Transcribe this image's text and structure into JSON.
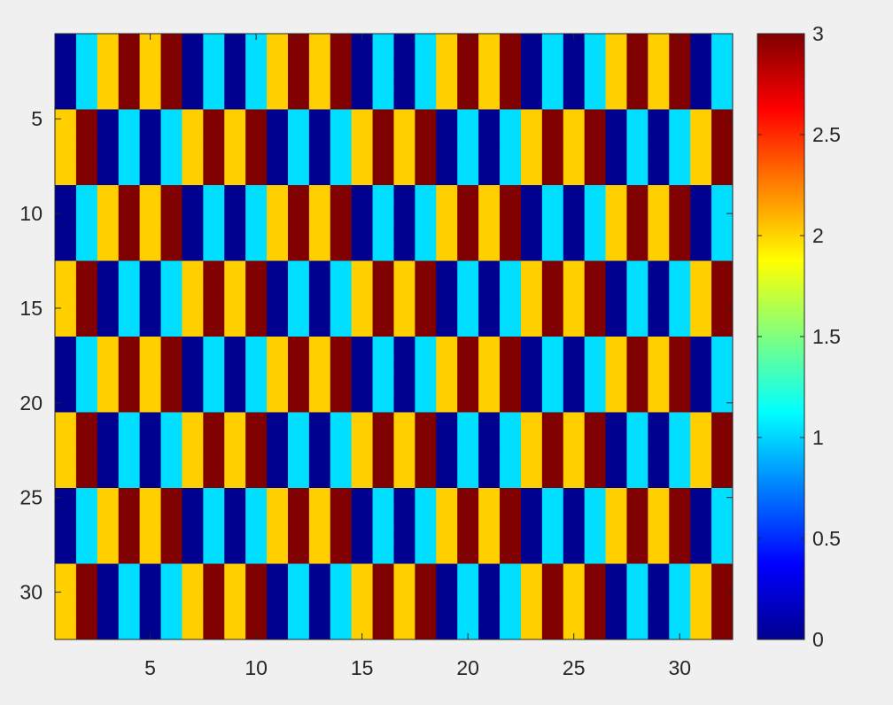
{
  "chart_data": {
    "type": "heatmap",
    "title": "",
    "xlabel": "",
    "ylabel": "",
    "x_range": [
      1,
      32
    ],
    "y_range": [
      1,
      32
    ],
    "y_direction": "reverse",
    "x_ticks": [
      "5",
      "10",
      "15",
      "20",
      "25",
      "30"
    ],
    "y_ticks": [
      "5",
      "10",
      "15",
      "20",
      "25",
      "30"
    ],
    "colormap": "jet",
    "clim": [
      0,
      3
    ],
    "colorbar": {
      "location": "right",
      "ticks": [
        "0",
        "0.5",
        "1",
        "1.5",
        "2",
        "2.5",
        "3"
      ]
    },
    "row_patterns": {
      "A": [
        0,
        1,
        2,
        3,
        2,
        3,
        0,
        1,
        0,
        1,
        2,
        3,
        2,
        3,
        0,
        1,
        0,
        1,
        2,
        3,
        2,
        3,
        0,
        1,
        0,
        1,
        2,
        3,
        2,
        3,
        0,
        1
      ],
      "B": [
        2,
        3,
        0,
        1,
        0,
        1,
        2,
        3,
        2,
        3,
        0,
        1,
        0,
        1,
        2,
        3,
        2,
        3,
        0,
        1,
        0,
        1,
        2,
        3,
        2,
        3,
        0,
        1,
        0,
        1,
        2,
        3
      ]
    },
    "row_bands": [
      {
        "rows": [
          1,
          4
        ],
        "pattern": "A"
      },
      {
        "rows": [
          5,
          8
        ],
        "pattern": "B"
      },
      {
        "rows": [
          9,
          12
        ],
        "pattern": "A"
      },
      {
        "rows": [
          13,
          16
        ],
        "pattern": "B"
      },
      {
        "rows": [
          17,
          20
        ],
        "pattern": "A"
      },
      {
        "rows": [
          21,
          24
        ],
        "pattern": "B"
      },
      {
        "rows": [
          25,
          28
        ],
        "pattern": "A"
      },
      {
        "rows": [
          29,
          32
        ],
        "pattern": "B"
      }
    ],
    "value_colors": {
      "0": "#00008f",
      "1": "#00dfff",
      "2": "#ffcf00",
      "3": "#800000"
    },
    "grid": false
  }
}
